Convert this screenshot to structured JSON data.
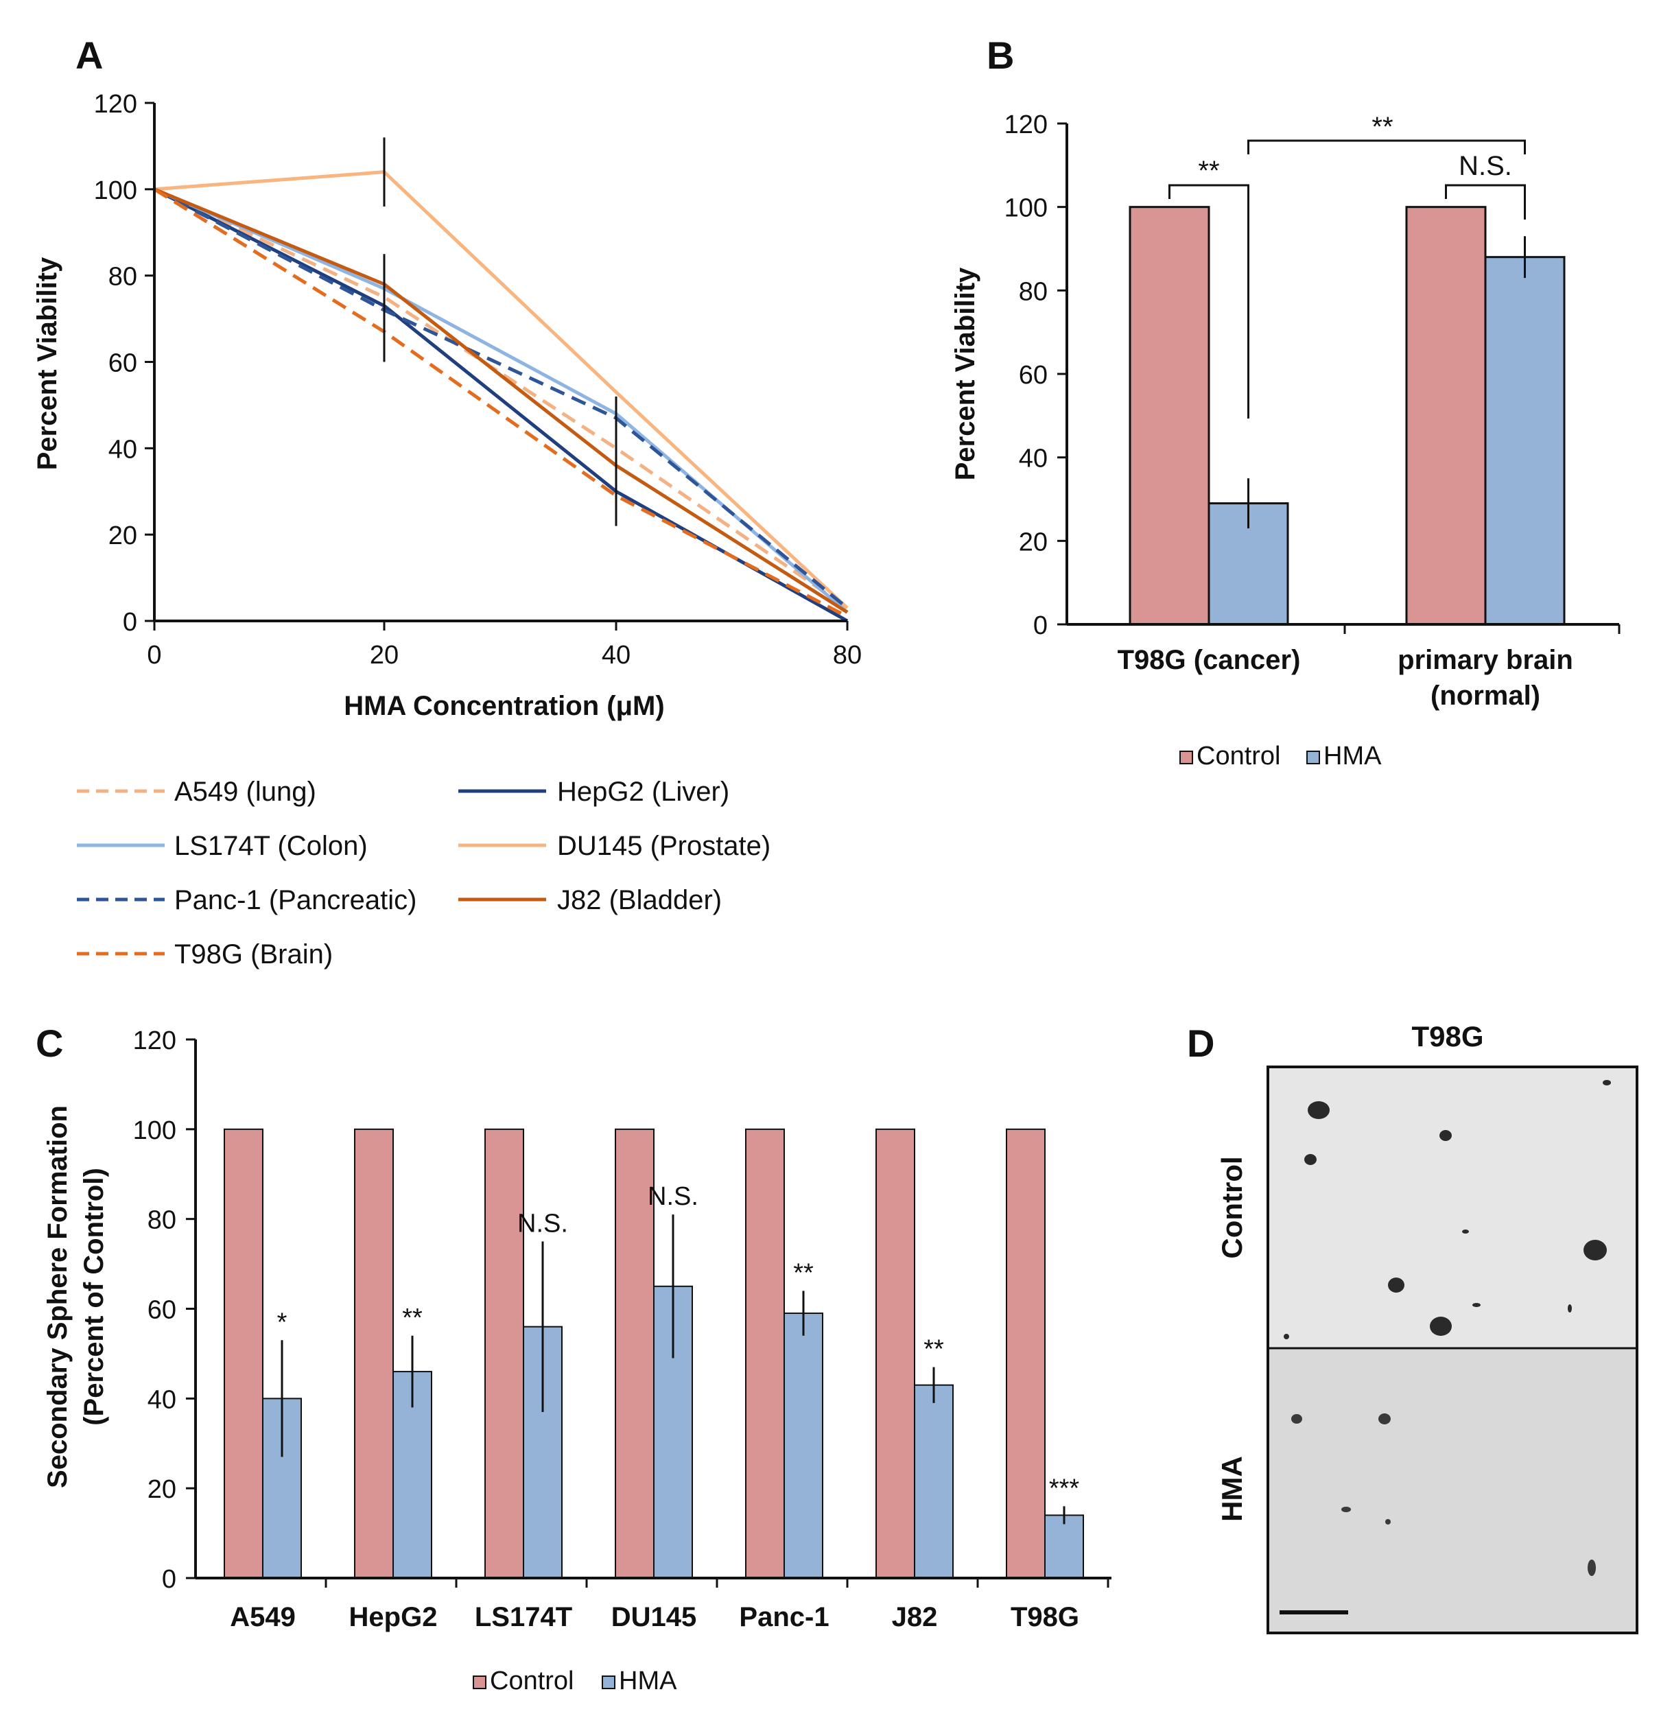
{
  "colors": {
    "control": "#d99594",
    "hma": "#95b3d7",
    "a549": "#f4b183",
    "hepg2": "#1f3f7f",
    "ls174t": "#8eb4e3",
    "du145": "#f8b580",
    "panc1": "#2e5597",
    "j82": "#c55a11",
    "t98g": "#e36c1f",
    "axis": "#111111"
  },
  "chart_data": [
    {
      "panel": "A",
      "type": "line",
      "xlabel": "HMA Concentration (μM)",
      "ylabel": "Percent Viability",
      "x_ticks": [
        "0",
        "20",
        "40",
        "80"
      ],
      "ylim": [
        0,
        120
      ],
      "y_ticks": [
        "0",
        "20",
        "40",
        "60",
        "80",
        "100",
        "120"
      ],
      "series": [
        {
          "name": "A549 (lung)",
          "values": [
            100,
            75,
            40,
            3
          ],
          "color_key": "a549",
          "dash": true
        },
        {
          "name": "HepG2 (Liver)",
          "values": [
            100,
            73,
            30,
            0
          ],
          "color_key": "hepg2",
          "dash": false
        },
        {
          "name": "LS174T (Colon)",
          "values": [
            100,
            77,
            48,
            2
          ],
          "color_key": "ls174t",
          "dash": false
        },
        {
          "name": "DU145 (Prostate)",
          "values": [
            100,
            104,
            53,
            3
          ],
          "color_key": "du145",
          "dash": false
        },
        {
          "name": "Panc-1 (Pancreatic)",
          "values": [
            100,
            72,
            47,
            3
          ],
          "color_key": "panc1",
          "dash": true
        },
        {
          "name": "J82 (Bladder)",
          "values": [
            100,
            78,
            36,
            2
          ],
          "color_key": "j82",
          "dash": false
        },
        {
          "name": "T98G (Brain)",
          "values": [
            100,
            67,
            29,
            1
          ],
          "color_key": "t98g",
          "dash": true
        }
      ],
      "error_bars": [
        {
          "x_index": 1,
          "low": 60,
          "high": 85
        },
        {
          "x_index": 1,
          "low": 96,
          "high": 112
        },
        {
          "x_index": 2,
          "low": 22,
          "high": 52
        }
      ]
    },
    {
      "panel": "B",
      "type": "bar",
      "ylabel": "Percent Viability",
      "categories": [
        "T98G (cancer)",
        "primary brain\n(normal)"
      ],
      "series": [
        {
          "name": "Control",
          "values": [
            100,
            100
          ]
        },
        {
          "name": "HMA",
          "values": [
            29,
            88
          ]
        }
      ],
      "errors": [
        [
          0,
          0
        ],
        [
          6,
          5
        ]
      ],
      "ylim": [
        0,
        120
      ],
      "y_ticks": [
        "0",
        "20",
        "40",
        "60",
        "80",
        "100",
        "120"
      ],
      "annotations": [
        "**",
        "**",
        "N.S."
      ]
    },
    {
      "panel": "C",
      "type": "bar",
      "ylabel_line1": "Secondary Sphere Formation",
      "ylabel_line2": "(Percent of Control)",
      "categories": [
        "A549",
        "HepG2",
        "LS174T",
        "DU145",
        "Panc-1",
        "J82",
        "T98G"
      ],
      "series": [
        {
          "name": "Control",
          "values": [
            100,
            100,
            100,
            100,
            100,
            100,
            100
          ]
        },
        {
          "name": "HMA",
          "values": [
            40,
            46,
            56,
            65,
            59,
            43,
            14
          ]
        }
      ],
      "errors": [
        13,
        8,
        19,
        16,
        5,
        4,
        2
      ],
      "significance": [
        "*",
        "**",
        "N.S.",
        "N.S.",
        "**",
        "**",
        "***"
      ],
      "ylim": [
        0,
        120
      ],
      "y_ticks": [
        "0",
        "20",
        "40",
        "60",
        "80",
        "100",
        "120"
      ]
    }
  ],
  "panels": {
    "a": "A",
    "b": "B",
    "c": "C",
    "d": "D"
  },
  "panel_d": {
    "title": "T98G",
    "row_top": "Control",
    "row_bottom": "HMA"
  }
}
